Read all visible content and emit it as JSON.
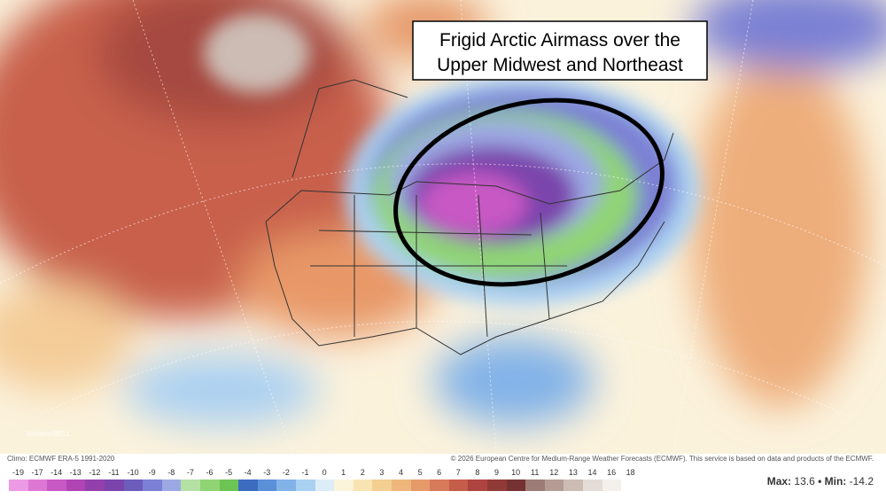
{
  "annotation": {
    "lines": [
      "Frigid Arctic Airmass over the",
      "Upper Midwest and Northeast"
    ]
  },
  "logo": "WeatherBELL",
  "footer": {
    "left": "Climo: ECMWF ERA-5 1991-2020",
    "right": "© 2026 European Centre for Medium-Range Weather Forecasts (ECMWF). This service is based on data and products of the ECMWF."
  },
  "colorbar": {
    "labels": [
      -19,
      -17,
      -14,
      -13,
      -12,
      -11,
      -10,
      -9,
      -8,
      -7,
      -6,
      -5,
      -4,
      -3,
      -2,
      -1,
      0,
      1,
      2,
      3,
      4,
      5,
      6,
      7,
      8,
      9,
      10,
      11,
      12,
      13,
      14,
      16,
      18
    ],
    "colors": [
      "#ec9ae4",
      "#dc78d4",
      "#c858c4",
      "#b044b4",
      "#9440ac",
      "#7a44ac",
      "#6c5cbc",
      "#7c80d4",
      "#9ca8e4",
      "#b4e0a4",
      "#90d474",
      "#6cc454",
      "#3c6cc0",
      "#5a90d8",
      "#82b2e8",
      "#aad0f2",
      "#dcedf8",
      "#fcf4da",
      "#f8e4b2",
      "#f4cf92",
      "#eeb67a",
      "#e69a6a",
      "#d67a5a",
      "#c65c4a",
      "#ae4440",
      "#903a38",
      "#763232",
      "#9c7c76",
      "#b49c94",
      "#ccbcb4",
      "#e4dcd6",
      "#f4f0ec",
      "#ffffff"
    ]
  },
  "stats": {
    "max_label": "Max:",
    "max": 13.6,
    "min_label": "Min:",
    "min": -14.2
  }
}
